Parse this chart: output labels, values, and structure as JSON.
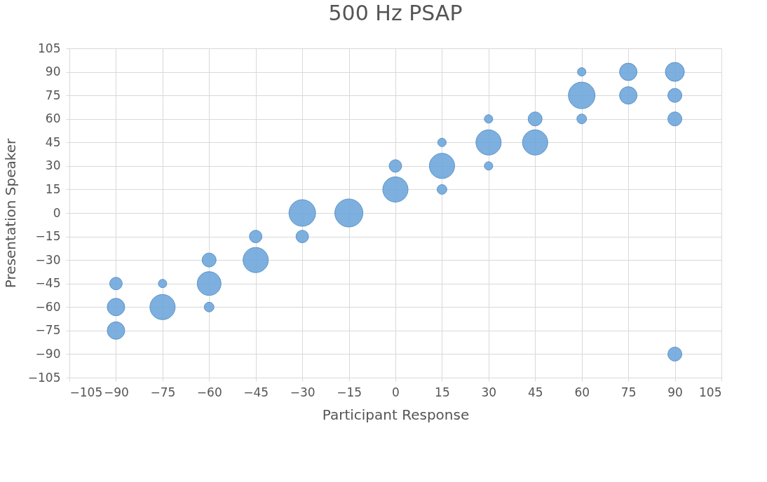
{
  "chart_data": {
    "type": "bubble",
    "title": "500 Hz PSAP",
    "xlabel": "Participant Response",
    "ylabel": "Presentation Speaker",
    "x": [
      -90,
      -90,
      -90,
      -75,
      -75,
      -60,
      -60,
      -60,
      -45,
      -45,
      -30,
      -30,
      -15,
      0,
      0,
      15,
      15,
      15,
      30,
      30,
      30,
      45,
      45,
      60,
      60,
      60,
      75,
      75,
      90,
      90,
      90,
      90
    ],
    "series": [
      {
        "color": "#6fa8dc",
        "values": [
          -45,
          -60,
          -75,
          -45,
          -60,
          -30,
          -45,
          -60,
          -15,
          -30,
          0,
          -15,
          0,
          30,
          15,
          45,
          30,
          15,
          60,
          45,
          30,
          60,
          45,
          90,
          75,
          60,
          90,
          75,
          90,
          75,
          60,
          -90
        ],
        "sizes": [
          0.2,
          0.39,
          0.39,
          0.09,
          0.81,
          0.25,
          0.72,
          0.12,
          0.2,
          0.81,
          0.9,
          0.2,
          1,
          0.2,
          0.81,
          0.09,
          0.81,
          0.12,
          0.09,
          0.81,
          0.09,
          0.25,
          0.81,
          0.09,
          0.9,
          0.12,
          0.39,
          0.39,
          0.46,
          0.25,
          0.25,
          0.25
        ]
      }
    ],
    "xlim": [
      -105,
      105
    ],
    "xticks": [
      -105,
      -90,
      -75,
      -60,
      -45,
      -30,
      -15,
      0,
      15,
      30,
      45,
      60,
      75,
      90,
      105
    ],
    "ylim": [
      -105,
      105
    ],
    "yticks": [
      -105,
      -90,
      -75,
      -60,
      -45,
      -30,
      -15,
      0,
      15,
      30,
      45,
      60,
      75,
      90,
      105
    ],
    "grid": true
  }
}
